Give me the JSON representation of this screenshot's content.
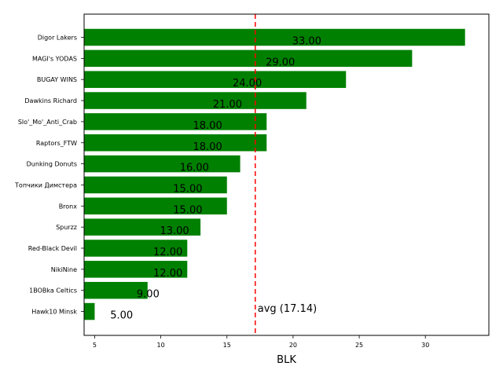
{
  "chart_data": {
    "type": "bar",
    "orientation": "horizontal",
    "title": "",
    "xlabel": "BLK",
    "ylabel": "",
    "xlim": [
      4.2,
      34.8
    ],
    "xticks": [
      5,
      10,
      15,
      20,
      25,
      30
    ],
    "grid": false,
    "bar_color": "#008000",
    "categories": [
      "Digor Lakers",
      "MAGI's YODAS",
      "BUGAY WINS",
      "Dawkins Richard",
      "Slo'_Mo'_Anti_Crab",
      "Raptors_FTW",
      "Dunking Donuts",
      "Топчики Димстера",
      "Bronx",
      "Spurzz",
      "Red-Black Devil",
      "NikiNine",
      "1BOBka Celtics",
      "Hawk10 Minsk"
    ],
    "values": [
      33,
      29,
      24,
      21,
      18,
      18,
      16,
      15,
      15,
      13,
      12,
      12,
      9,
      5
    ],
    "value_labels": [
      "33.00",
      "29.00",
      "24.00",
      "21.00",
      "18.00",
      "18.00",
      "16.00",
      "15.00",
      "15.00",
      "13.00",
      "12.00",
      "12.00",
      "9.00",
      "5.00"
    ],
    "average": {
      "value": 17.14,
      "label": "avg (17.14)",
      "color": "#ff0000",
      "style": "dashed"
    }
  }
}
